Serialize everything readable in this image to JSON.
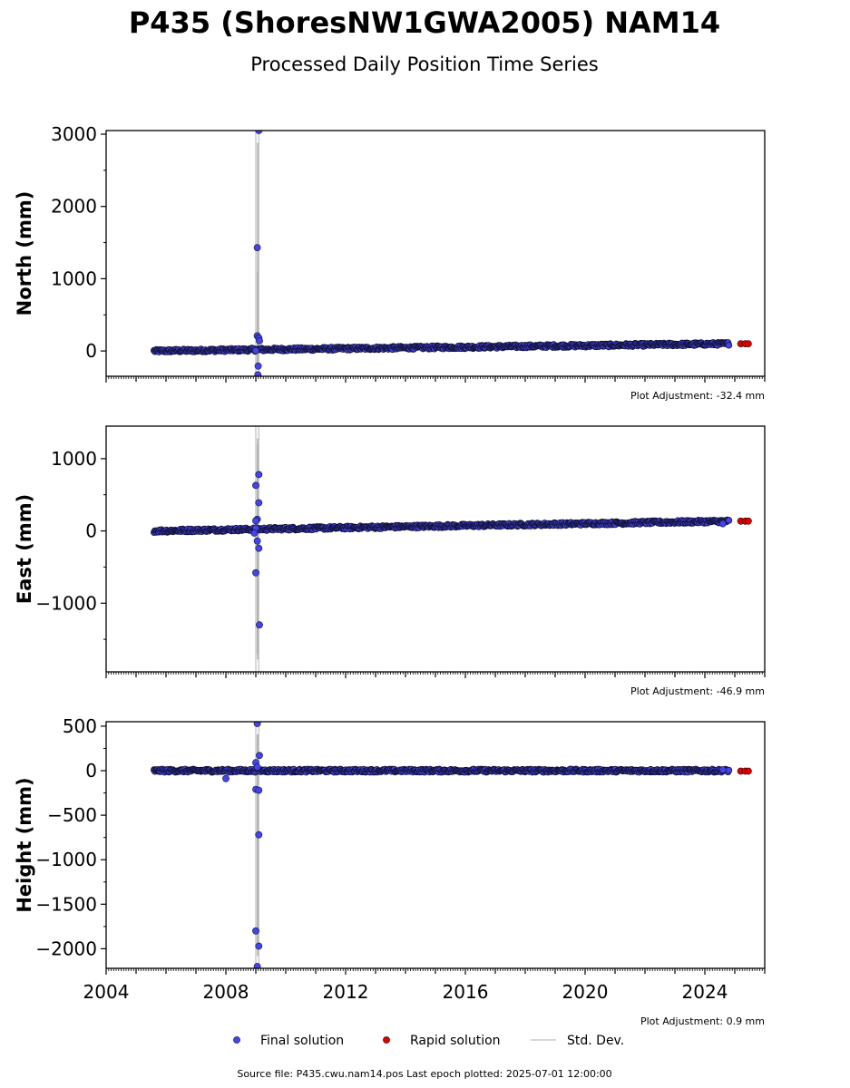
{
  "chart_data": {
    "type": "scatter",
    "title": "P435 (ShoresNW1GWA2005) NAM14",
    "subtitle": "Processed Daily Position Time Series",
    "x_axis": {
      "range": [
        2004,
        2026
      ],
      "ticks": [
        2004,
        2008,
        2012,
        2016,
        2020,
        2024
      ],
      "tick_labels": [
        "2004",
        "2008",
        "2012",
        "2016",
        "2020",
        "2024"
      ]
    },
    "panels": [
      {
        "name": "north",
        "ylabel": "North (mm)",
        "ylim": [
          -350,
          3050
        ],
        "yticks": [
          0,
          1000,
          2000,
          3000
        ],
        "ytick_labels": [
          "0",
          "1000",
          "2000",
          "3000"
        ],
        "adjustment": "Plot Adjustment: -32.4 mm",
        "trend": [
          [
            2005.6,
            0
          ],
          [
            2024.8,
            100
          ]
        ],
        "outliers": [
          [
            2009.05,
            1430
          ],
          [
            2009.1,
            3050
          ],
          [
            2009.05,
            210
          ],
          [
            2009.1,
            180
          ],
          [
            2009.12,
            140
          ],
          [
            2009.08,
            -210
          ],
          [
            2009.07,
            -330
          ],
          [
            2009.0,
            5
          ]
        ],
        "stddev_spikes": [
          [
            2009.0,
            -350,
            3050
          ],
          [
            2009.1,
            -350,
            3050
          ],
          [
            2009.05,
            -200,
            1100
          ]
        ],
        "rapid": [
          [
            2025.2,
            100
          ],
          [
            2025.35,
            100
          ],
          [
            2025.45,
            100
          ]
        ]
      },
      {
        "name": "east",
        "ylabel": "East (mm)",
        "ylim": [
          -1950,
          1450
        ],
        "yticks": [
          -1000,
          0,
          1000
        ],
        "ytick_labels": [
          "−1000",
          "0",
          "1000"
        ],
        "adjustment": "Plot Adjustment: -46.9 mm",
        "trend": [
          [
            2005.6,
            0
          ],
          [
            2024.8,
            135
          ]
        ],
        "outliers": [
          [
            2009.1,
            780
          ],
          [
            2009.0,
            630
          ],
          [
            2009.1,
            390
          ],
          [
            2009.05,
            160
          ],
          [
            2009.0,
            140
          ],
          [
            2009.0,
            40
          ],
          [
            2008.95,
            -30
          ],
          [
            2009.05,
            -140
          ],
          [
            2009.1,
            -240
          ],
          [
            2009.0,
            -580
          ],
          [
            2009.12,
            -1300
          ],
          [
            2024.6,
            100
          ]
        ],
        "stddev_spikes": [
          [
            2009.0,
            -1950,
            1450
          ],
          [
            2009.1,
            -1950,
            1450
          ],
          [
            2009.05,
            -1700,
            1200
          ]
        ],
        "rapid": [
          [
            2025.2,
            135
          ],
          [
            2025.35,
            135
          ],
          [
            2025.45,
            135
          ]
        ]
      },
      {
        "name": "height",
        "ylabel": "Height (mm)",
        "ylim": [
          -2220,
          550
        ],
        "yticks": [
          -2000,
          -1500,
          -1000,
          -500,
          0,
          500
        ],
        "ytick_labels": [
          "−2000",
          "−1500",
          "−1000",
          "−500",
          "0",
          "500"
        ],
        "adjustment": "Plot Adjustment: 0.9 mm",
        "trend": [
          [
            2005.6,
            0
          ],
          [
            2024.8,
            0
          ]
        ],
        "outliers": [
          [
            2009.05,
            530
          ],
          [
            2009.12,
            170
          ],
          [
            2009.0,
            90
          ],
          [
            2009.05,
            40
          ],
          [
            2008.0,
            -90
          ],
          [
            2009.0,
            -210
          ],
          [
            2009.1,
            -220
          ],
          [
            2009.1,
            -720
          ],
          [
            2009.0,
            -1800
          ],
          [
            2009.1,
            -1970
          ],
          [
            2009.05,
            -2200
          ],
          [
            2024.6,
            10
          ]
        ],
        "stddev_spikes": [
          [
            2009.0,
            -2220,
            550
          ],
          [
            2009.1,
            -2220,
            550
          ],
          [
            2009.05,
            -2000,
            400
          ]
        ],
        "rapid": [
          [
            2025.2,
            -5
          ],
          [
            2025.35,
            -5
          ],
          [
            2025.45,
            -5
          ]
        ]
      }
    ],
    "legend": {
      "placement": "bottom",
      "entries": [
        {
          "label": "Final solution",
          "color": "#4444ee"
        },
        {
          "label": "Rapid solution",
          "color": "#dd0000"
        },
        {
          "label": "Std. Dev.",
          "color": "#c8c8c8"
        }
      ]
    },
    "footer": "Source file: P435.cwu.nam14.pos  Last epoch plotted: 2025-07-01 12:00:00"
  }
}
